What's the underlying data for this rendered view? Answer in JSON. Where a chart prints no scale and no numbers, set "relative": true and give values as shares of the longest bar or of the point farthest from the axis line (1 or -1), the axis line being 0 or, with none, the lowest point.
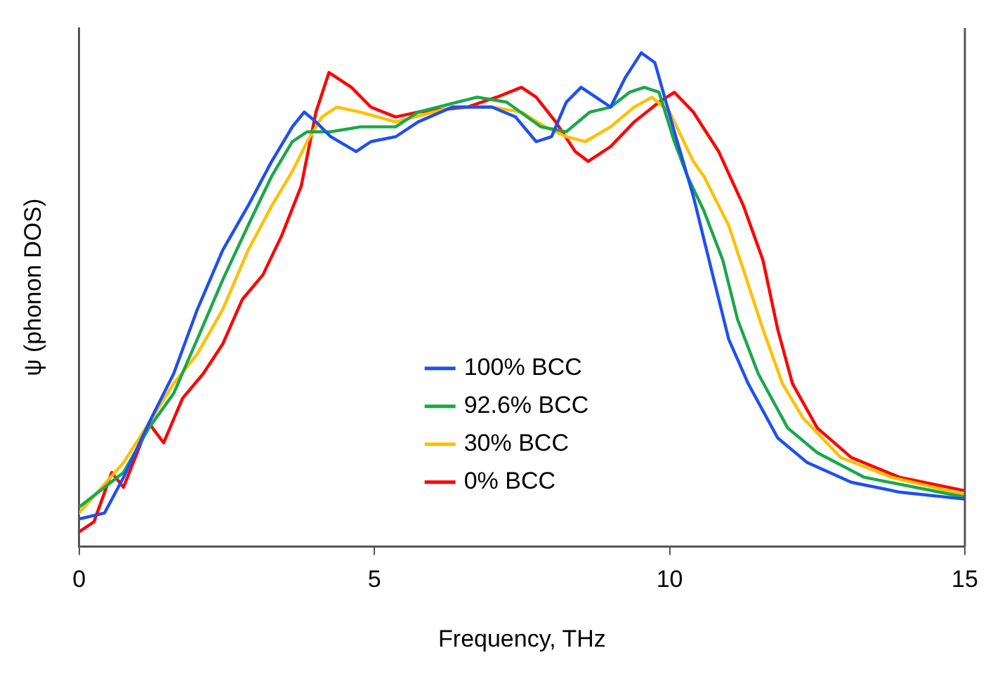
{
  "chart_data": {
    "type": "line",
    "xlabel": "Frequency, THz",
    "ylabel": "ψ (phonon DOS)",
    "relative": true,
    "xlim": [
      0,
      15
    ],
    "xticks": [
      0,
      5,
      10,
      15
    ],
    "tick_labels": "x",
    "grid": false,
    "legend": "bottom",
    "marker": "none",
    "line_style": "solid",
    "series": [
      {
        "name": "100% BCC",
        "color": "#1f4ff0",
        "x": [
          0,
          0.43,
          0.75,
          1.18,
          1.6,
          2.0,
          2.43,
          2.86,
          3.26,
          3.61,
          3.81,
          4.01,
          4.26,
          4.69,
          4.94,
          5.36,
          5.74,
          6.32,
          6.99,
          7.39,
          7.74,
          8.0,
          8.25,
          8.5,
          8.75,
          9.0,
          9.25,
          9.52,
          9.75,
          10.08,
          10.4,
          10.75,
          11.0,
          11.33,
          11.83,
          12.33,
          13.08,
          13.9,
          15.0
        ],
        "values": [
          0.056,
          0.068,
          0.14,
          0.25,
          0.35,
          0.48,
          0.6,
          0.69,
          0.78,
          0.85,
          0.88,
          0.86,
          0.83,
          0.8,
          0.82,
          0.83,
          0.86,
          0.89,
          0.89,
          0.87,
          0.82,
          0.83,
          0.9,
          0.93,
          0.91,
          0.89,
          0.95,
          1.0,
          0.98,
          0.84,
          0.71,
          0.54,
          0.42,
          0.33,
          0.22,
          0.17,
          0.13,
          0.11,
          0.096
        ]
      },
      {
        "name": "92.6% BCC",
        "color": "#1aa84a",
        "x": [
          0,
          0.75,
          1.18,
          1.6,
          2.0,
          2.43,
          2.86,
          3.26,
          3.61,
          3.86,
          4.26,
          4.76,
          5.36,
          5.74,
          6.74,
          7.24,
          7.82,
          8.25,
          8.65,
          9.0,
          9.32,
          9.57,
          9.82,
          10.08,
          10.3,
          10.58,
          10.9,
          11.15,
          11.5,
          12.0,
          12.5,
          13.3,
          15.0
        ],
        "values": [
          0.08,
          0.15,
          0.24,
          0.31,
          0.42,
          0.54,
          0.65,
          0.75,
          0.82,
          0.84,
          0.84,
          0.85,
          0.85,
          0.88,
          0.91,
          0.9,
          0.85,
          0.84,
          0.88,
          0.89,
          0.92,
          0.93,
          0.92,
          0.82,
          0.75,
          0.68,
          0.58,
          0.46,
          0.35,
          0.24,
          0.19,
          0.14,
          0.1
        ]
      },
      {
        "name": "30% BCC",
        "color": "#ffc000",
        "x": [
          0,
          0.75,
          1.18,
          1.6,
          2.0,
          2.43,
          2.86,
          3.26,
          3.61,
          3.86,
          4.11,
          4.36,
          4.76,
          5.36,
          6.32,
          6.99,
          7.49,
          7.89,
          8.25,
          8.57,
          9.0,
          9.4,
          9.7,
          10.0,
          10.4,
          10.58,
          11.0,
          11.25,
          11.58,
          11.91,
          12.26,
          12.9,
          13.76,
          15.0
        ],
        "values": [
          0.068,
          0.17,
          0.25,
          0.33,
          0.39,
          0.48,
          0.6,
          0.69,
          0.76,
          0.82,
          0.87,
          0.89,
          0.88,
          0.86,
          0.89,
          0.89,
          0.88,
          0.85,
          0.83,
          0.82,
          0.85,
          0.89,
          0.91,
          0.88,
          0.78,
          0.75,
          0.65,
          0.56,
          0.44,
          0.33,
          0.26,
          0.18,
          0.14,
          0.105
        ]
      },
      {
        "name": "0% BCC",
        "color": "#ff0000",
        "x": [
          0,
          0.25,
          0.55,
          0.75,
          1.18,
          1.43,
          1.75,
          2.1,
          2.43,
          2.76,
          3.11,
          3.43,
          3.76,
          4.01,
          4.23,
          4.61,
          4.94,
          5.36,
          5.74,
          6.57,
          7.07,
          7.49,
          7.74,
          8.07,
          8.4,
          8.62,
          9.0,
          9.4,
          9.82,
          10.08,
          10.4,
          10.83,
          11.25,
          11.58,
          11.83,
          12.08,
          12.5,
          13.08,
          13.9,
          15.0
        ],
        "values": [
          0.03,
          0.05,
          0.15,
          0.12,
          0.25,
          0.21,
          0.3,
          0.35,
          0.41,
          0.5,
          0.55,
          0.63,
          0.73,
          0.88,
          0.96,
          0.93,
          0.89,
          0.87,
          0.88,
          0.89,
          0.91,
          0.93,
          0.91,
          0.86,
          0.8,
          0.78,
          0.81,
          0.86,
          0.9,
          0.92,
          0.88,
          0.8,
          0.69,
          0.58,
          0.44,
          0.33,
          0.24,
          0.18,
          0.14,
          0.113
        ]
      }
    ]
  }
}
